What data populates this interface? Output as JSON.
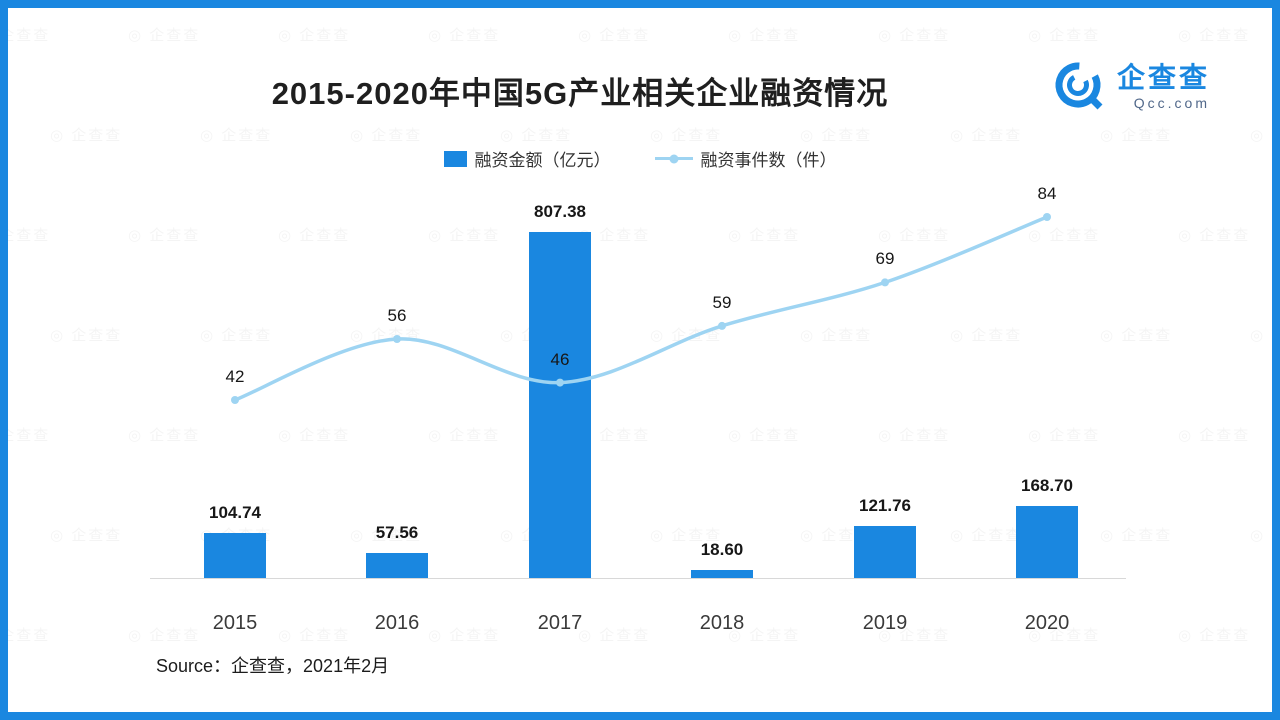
{
  "title": "2015-2020年中国5G产业相关企业融资情况",
  "logo": {
    "name": "企查查",
    "domain": "Qcc.com"
  },
  "legend": {
    "bar_label": "融资金额（亿元）",
    "line_label": "融资事件数（件）"
  },
  "source": "Source：企查查，2021年2月",
  "watermark": {
    "text": "企查查"
  },
  "colors": {
    "frame": "#1a87e0",
    "bar": "#1a87e0",
    "line": "#9ed4f2",
    "axis": "#d8d8d8",
    "label_text": "#171717",
    "tick_text": "#3a3a3a"
  },
  "chart_data": {
    "type": "bar",
    "title": "2015-2020年中国5G产业相关企业融资情况",
    "categories": [
      "2015",
      "2016",
      "2017",
      "2018",
      "2019",
      "2020"
    ],
    "series": [
      {
        "name": "融资金额（亿元）",
        "type": "bar",
        "values": [
          104.74,
          57.56,
          807.38,
          18.6,
          121.76,
          168.7
        ],
        "value_labels": [
          "104.74",
          "57.56",
          "807.38",
          "18.60",
          "121.76",
          "168.70"
        ]
      },
      {
        "name": "融资事件数（件）",
        "type": "line",
        "values": [
          42,
          56,
          46,
          59,
          69,
          84
        ]
      }
    ],
    "xlabel": "",
    "ylabel": "",
    "legend_position": "top",
    "grid": false
  }
}
